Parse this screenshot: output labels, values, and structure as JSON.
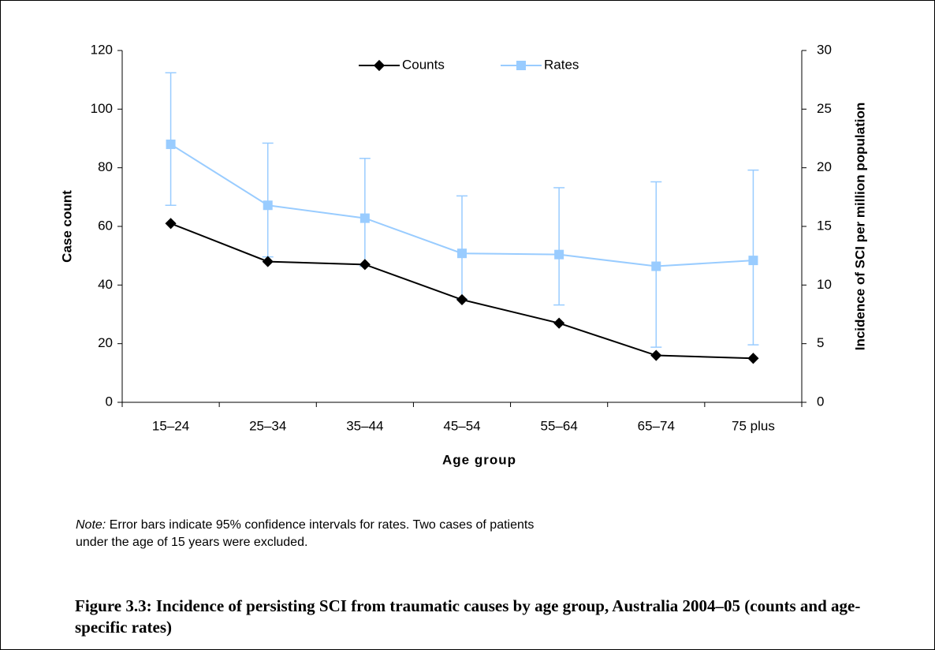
{
  "chart_data": {
    "type": "line",
    "title": "Figure 3.3: Incidence of persisting SCI from traumatic causes by age group, Australia 2004–05 (counts and age-specific rates)",
    "note_label": "Note:",
    "note_text": "Error bars indicate 95% confidence intervals for rates. Two cases of patients under the age of 15 years were excluded.",
    "x_label": "Age group",
    "y_label": "Case count",
    "y2_label": "Incidence of SCI per million population",
    "categories": [
      "15–24",
      "25–34",
      "35–44",
      "45–54",
      "55–64",
      "65–74",
      "75 plus"
    ],
    "series": [
      {
        "name": "Counts",
        "color": "#000000",
        "values": [
          61,
          48,
          47,
          35,
          27,
          16,
          15
        ]
      },
      {
        "name": "Rates",
        "color": "#99ccff",
        "axis": "y2",
        "values": [
          22.0,
          16.8,
          15.7,
          12.7,
          12.6,
          11.6,
          12.1
        ],
        "ci_lower": [
          16.8,
          12.4,
          11.6,
          8.8,
          8.3,
          4.7,
          4.9
        ],
        "ci_upper": [
          28.1,
          22.1,
          20.8,
          17.6,
          18.3,
          18.8,
          19.8
        ]
      }
    ],
    "ylim": [
      0,
      120
    ],
    "yticks": [
      0,
      20,
      40,
      60,
      80,
      100,
      120
    ],
    "y2lim": [
      0,
      30
    ],
    "y2ticks": [
      0,
      5,
      10,
      15,
      20,
      25,
      30
    ],
    "legend": "top",
    "grid": false
  }
}
